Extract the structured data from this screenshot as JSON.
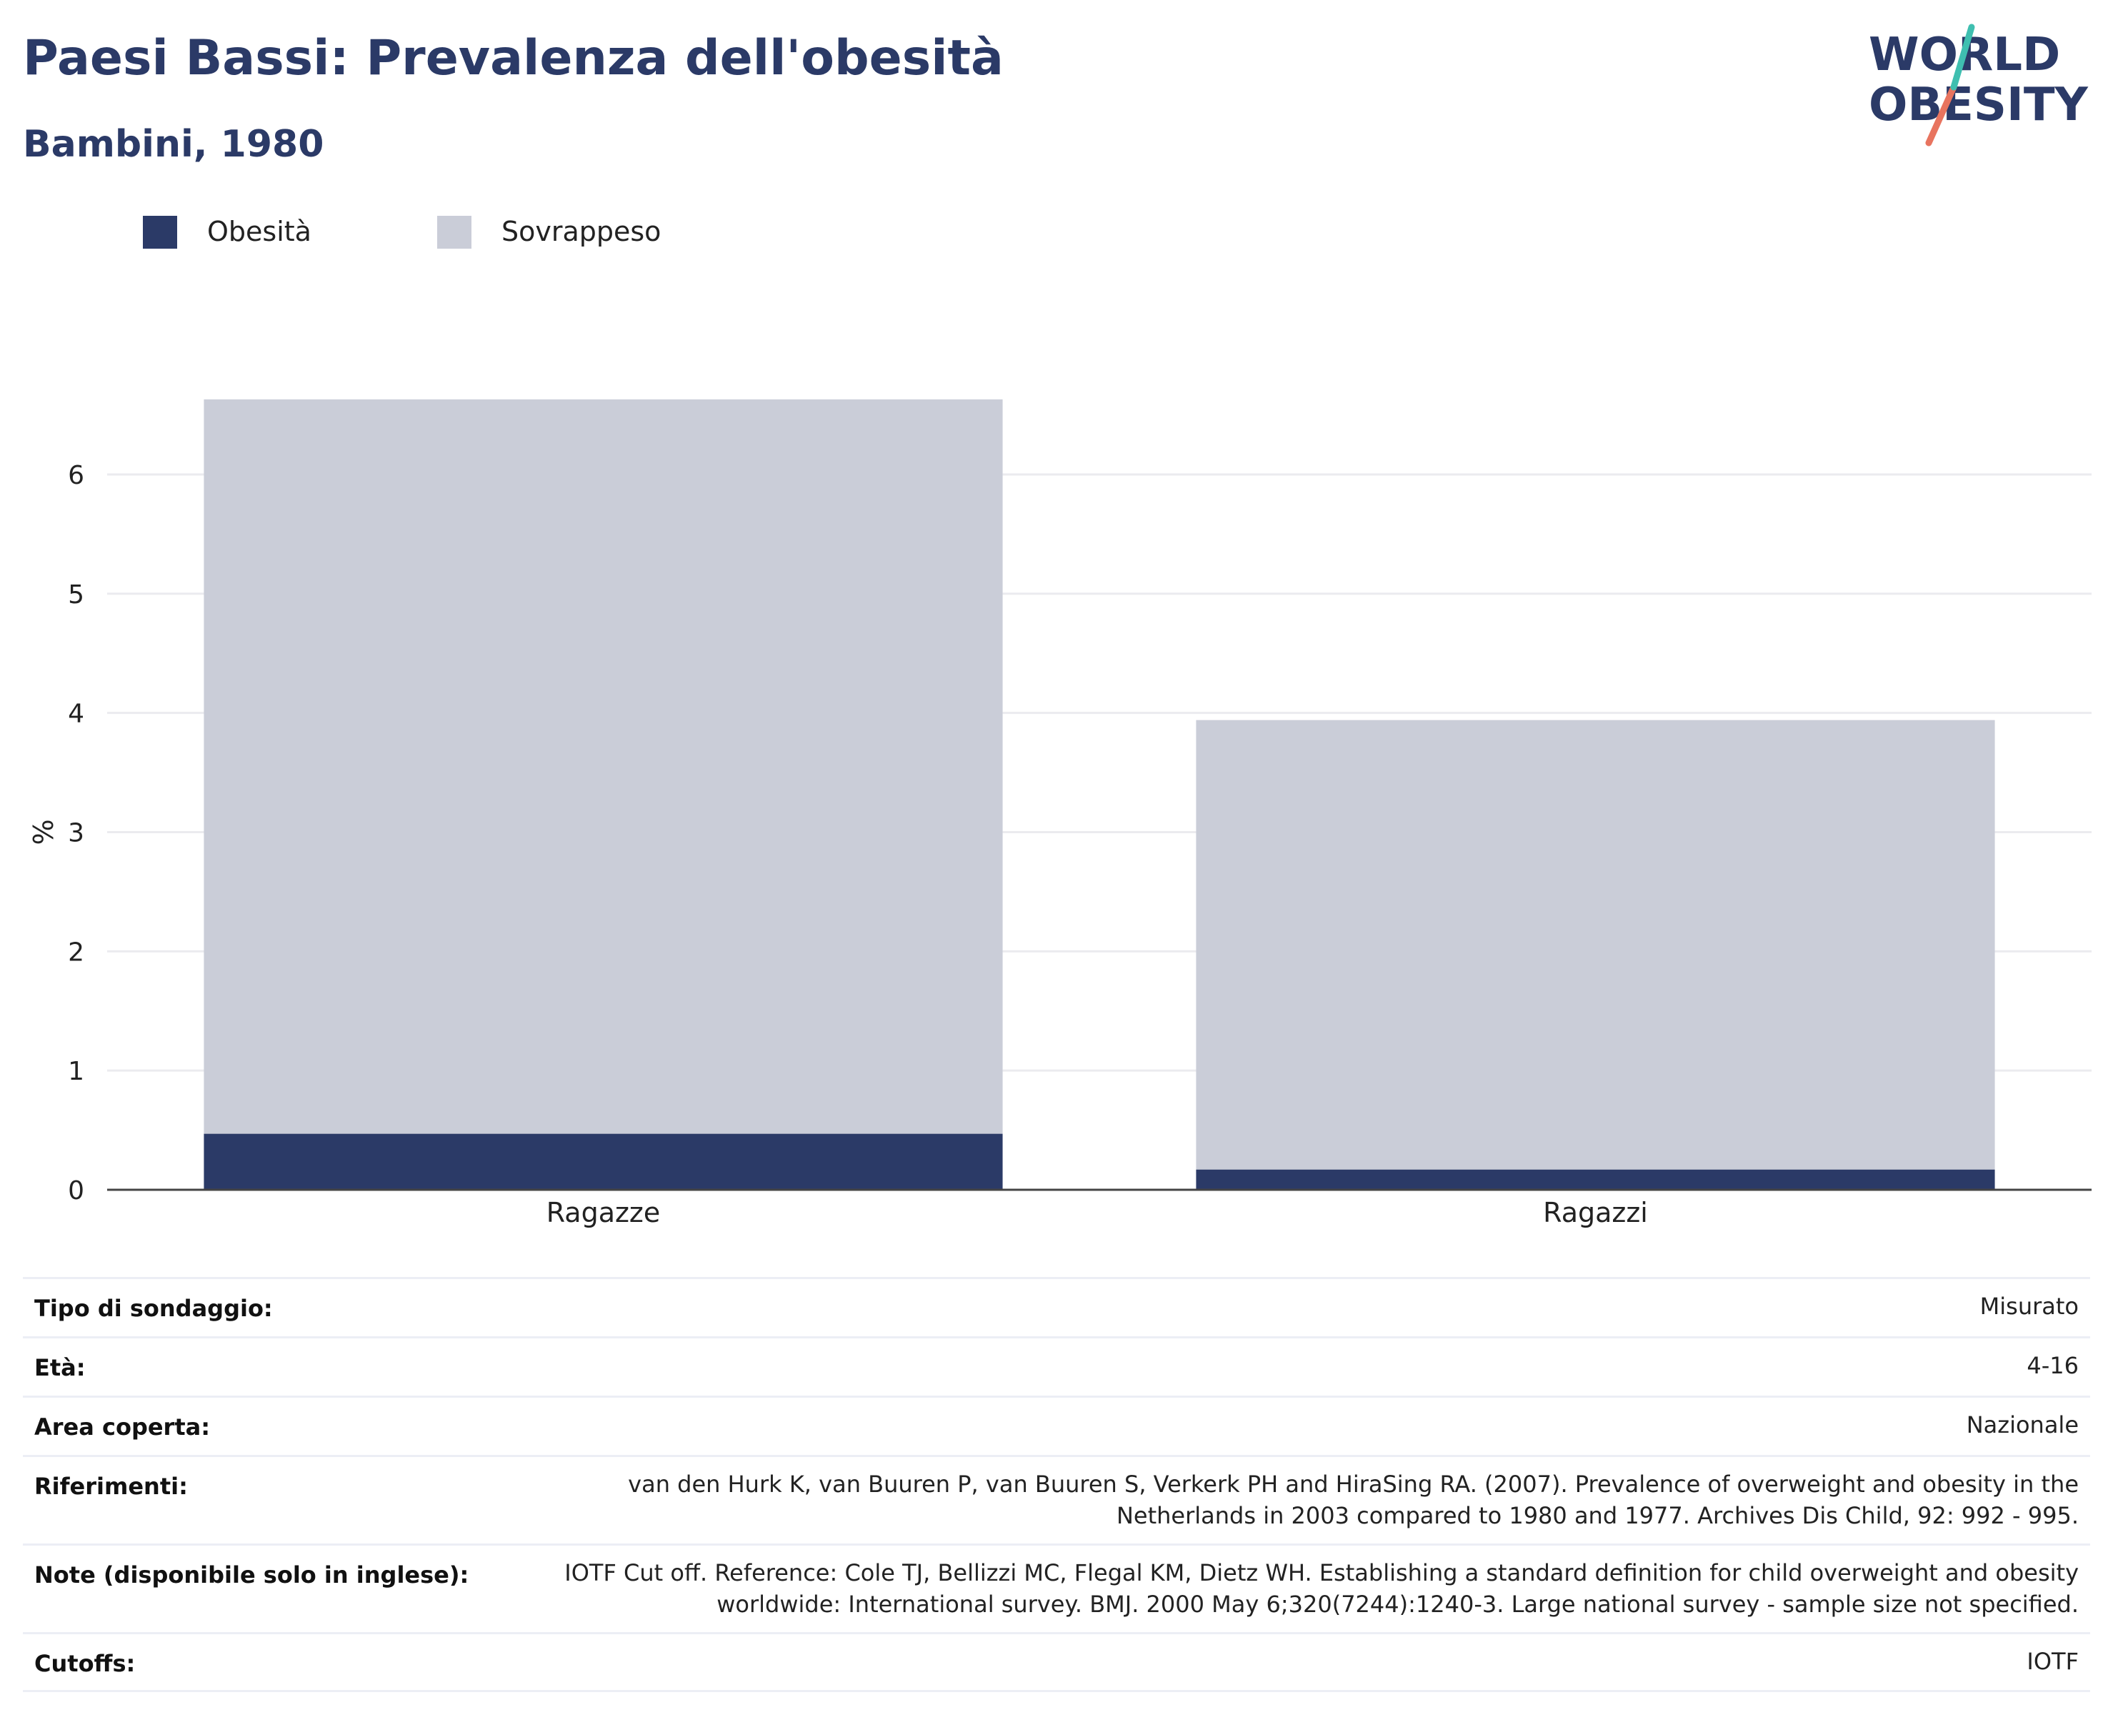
{
  "header": {
    "title": "Paesi Bassi: Prevalenza dell'obesità",
    "subtitle": "Bambini, 1980"
  },
  "logo": {
    "line1": "WORLD",
    "line2": "OBESITY",
    "colors": [
      "#2b3a67",
      "#3fbfb0",
      "#e8745f"
    ]
  },
  "legend": [
    {
      "label": "Obesità",
      "color": "#2b3a67"
    },
    {
      "label": "Sovrappeso",
      "color": "#cacdd8"
    }
  ],
  "chart_data": {
    "type": "bar",
    "stacked": true,
    "categories": [
      "Ragazze",
      "Ragazzi"
    ],
    "series": [
      {
        "name": "Obesità",
        "values": [
          0.47,
          0.17
        ],
        "color": "#2b3a67"
      },
      {
        "name": "Sovrappeso",
        "values": [
          6.16,
          3.77
        ],
        "color": "#cacdd8"
      }
    ],
    "totals": [
      6.63,
      3.94
    ],
    "ylabel": "%",
    "ylim": [
      0,
      7
    ],
    "yticks": [
      0,
      1,
      2,
      3,
      4,
      5,
      6
    ],
    "grid": true,
    "legend_position": "top-left"
  },
  "info": [
    {
      "label": "Tipo di sondaggio:",
      "value": [
        "Misurato"
      ]
    },
    {
      "label": "Età:",
      "value": [
        "4-16"
      ]
    },
    {
      "label": "Area coperta:",
      "value": [
        "Nazionale"
      ]
    },
    {
      "label": "Riferimenti:",
      "value": [
        "van den Hurk K, van Buuren P, van Buuren S, Verkerk PH and HiraSing RA. (2007). Prevalence of overweight and obesity in the",
        "Netherlands in 2003 compared to 1980 and 1977. Archives Dis Child, 92: 992 - 995."
      ]
    },
    {
      "label": "Note (disponibile solo in inglese):",
      "value": [
        "IOTF Cut off. Reference: Cole TJ, Bellizzi MC, Flegal KM, Dietz WH. Establishing a standard definition for child overweight and obesity",
        "worldwide: International survey. BMJ. 2000 May 6;320(7244):1240-3. Large national survey - sample size not specified."
      ]
    },
    {
      "label": "Cutoffs:",
      "value": [
        "IOTF"
      ]
    }
  ]
}
